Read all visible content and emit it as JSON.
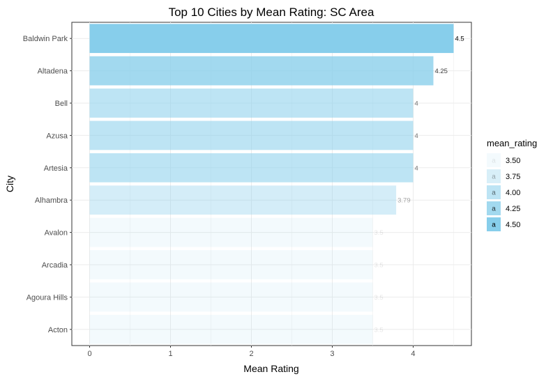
{
  "chart_data": {
    "type": "bar",
    "orientation": "horizontal",
    "title": "Top 10 Cities by Mean Rating: SC Area",
    "xlabel": "Mean Rating",
    "ylabel": "City",
    "categories": [
      "Baldwin Park",
      "Altadena",
      "Bell",
      "Azusa",
      "Artesia",
      "Alhambra",
      "Avalon",
      "Arcadia",
      "Agoura Hills",
      "Acton"
    ],
    "values": [
      4.5,
      4.25,
      4,
      4,
      4,
      3.79,
      3.5,
      3.5,
      3.5,
      3.5
    ],
    "data_labels": [
      "4.5",
      "4.25",
      "4",
      "4",
      "4",
      "3.79",
      "3.5",
      "3.5",
      "3.5",
      "3.5"
    ],
    "xlim": [
      -0.22,
      4.72
    ],
    "xticks": [
      0,
      1,
      2,
      3,
      4
    ],
    "xtick_labels": [
      "0",
      "1",
      "2",
      "3",
      "4"
    ],
    "grid": true,
    "legend": {
      "title": "mean_rating",
      "placement": "right",
      "key_glyph": "a",
      "entries": [
        {
          "label": "3.50",
          "value": 3.5
        },
        {
          "label": "3.75",
          "value": 3.75
        },
        {
          "label": "4.00",
          "value": 4.0
        },
        {
          "label": "4.25",
          "value": 4.25
        },
        {
          "label": "4.50",
          "value": 4.5
        }
      ]
    },
    "fill_color": "#87ceeb",
    "alpha_range": [
      0.1,
      1.0
    ]
  }
}
